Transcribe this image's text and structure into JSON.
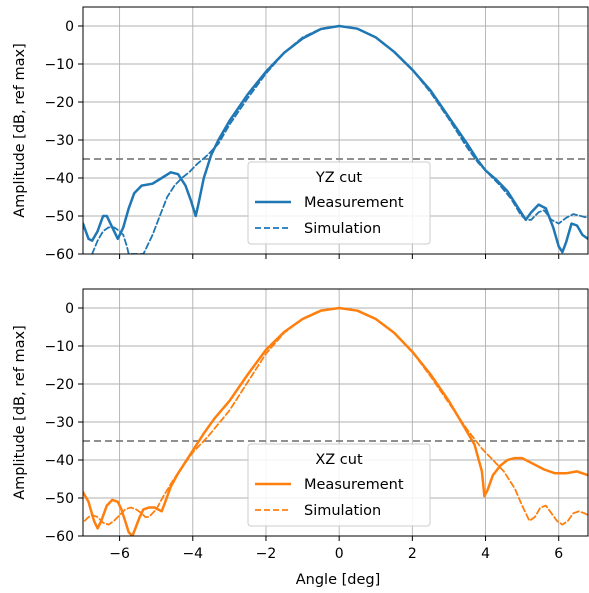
{
  "chart_data": [
    {
      "type": "line",
      "xlabel": "",
      "ylabel": "Amplitude [dB, ref max]",
      "xlim": [
        -7,
        6.8
      ],
      "ylim": [
        -60,
        5
      ],
      "xticks": [
        -6,
        -4,
        -2,
        0,
        2,
        4,
        6
      ],
      "yticks": [
        0,
        -10,
        -20,
        -30,
        -40,
        -50,
        -60
      ],
      "grid": true,
      "legend_title": "YZ cut",
      "legend_position": "lower-center",
      "threshold": -35,
      "color": "#1f77b4",
      "series": [
        {
          "name": "Measurement",
          "style": "solid",
          "points": [
            [
              -7.0,
              -52
            ],
            [
              -6.85,
              -56
            ],
            [
              -6.75,
              -56.5
            ],
            [
              -6.6,
              -54
            ],
            [
              -6.45,
              -50
            ],
            [
              -6.35,
              -50
            ],
            [
              -6.2,
              -53
            ],
            [
              -6.05,
              -56
            ],
            [
              -5.9,
              -53
            ],
            [
              -5.75,
              -48
            ],
            [
              -5.6,
              -44
            ],
            [
              -5.4,
              -42
            ],
            [
              -5.1,
              -41.5
            ],
            [
              -4.85,
              -40
            ],
            [
              -4.6,
              -38.5
            ],
            [
              -4.4,
              -39
            ],
            [
              -4.2,
              -42
            ],
            [
              -4.05,
              -46
            ],
            [
              -3.92,
              -50
            ],
            [
              -3.85,
              -47
            ],
            [
              -3.7,
              -40
            ],
            [
              -3.5,
              -34
            ],
            [
              -3.3,
              -30
            ],
            [
              -3.0,
              -25
            ],
            [
              -2.5,
              -18
            ],
            [
              -2.0,
              -12
            ],
            [
              -1.5,
              -7
            ],
            [
              -1.0,
              -3.3
            ],
            [
              -0.5,
              -0.8
            ],
            [
              0.0,
              0
            ],
            [
              0.5,
              -0.7
            ],
            [
              1.0,
              -3.0
            ],
            [
              1.5,
              -6.8
            ],
            [
              2.0,
              -11.5
            ],
            [
              2.5,
              -17
            ],
            [
              3.0,
              -24
            ],
            [
              3.5,
              -31
            ],
            [
              3.8,
              -35.5
            ],
            [
              4.0,
              -38
            ],
            [
              4.3,
              -40.5
            ],
            [
              4.6,
              -43.5
            ],
            [
              4.9,
              -48
            ],
            [
              5.1,
              -51
            ],
            [
              5.25,
              -49
            ],
            [
              5.45,
              -47
            ],
            [
              5.65,
              -48
            ],
            [
              5.85,
              -53
            ],
            [
              6.0,
              -58
            ],
            [
              6.1,
              -59.5
            ],
            [
              6.2,
              -57
            ],
            [
              6.35,
              -52
            ],
            [
              6.5,
              -52.5
            ],
            [
              6.65,
              -55
            ],
            [
              6.8,
              -56
            ]
          ]
        },
        {
          "name": "Simulation",
          "style": "dashed",
          "points": [
            [
              -6.75,
              -60
            ],
            [
              -6.6,
              -56.5
            ],
            [
              -6.45,
              -54
            ],
            [
              -6.3,
              -53
            ],
            [
              -6.15,
              -53
            ],
            [
              -6.0,
              -54
            ],
            [
              -5.9,
              -55
            ],
            [
              -5.8,
              -58
            ],
            [
              -5.75,
              -60
            ],
            [
              -5.35,
              -60
            ],
            [
              -5.2,
              -57
            ],
            [
              -5.1,
              -55
            ],
            [
              -4.9,
              -50
            ],
            [
              -4.7,
              -45
            ],
            [
              -4.5,
              -42
            ],
            [
              -4.3,
              -40
            ],
            [
              -4.1,
              -38.5
            ],
            [
              -3.9,
              -36.5
            ],
            [
              -3.6,
              -34
            ],
            [
              -3.3,
              -31
            ],
            [
              -3.0,
              -26
            ],
            [
              -2.5,
              -19
            ],
            [
              -2.0,
              -12.5
            ],
            [
              -1.5,
              -7
            ],
            [
              -1.0,
              -3
            ],
            [
              -0.5,
              -0.7
            ],
            [
              0.0,
              0
            ],
            [
              0.5,
              -0.7
            ],
            [
              1.0,
              -3.0
            ],
            [
              1.5,
              -6.8
            ],
            [
              2.0,
              -11.5
            ],
            [
              2.5,
              -17.5
            ],
            [
              3.0,
              -24.5
            ],
            [
              3.5,
              -32
            ],
            [
              3.8,
              -36
            ],
            [
              4.1,
              -39
            ],
            [
              4.4,
              -42
            ],
            [
              4.7,
              -45.5
            ],
            [
              4.95,
              -49.5
            ],
            [
              5.1,
              -51
            ],
            [
              5.25,
              -51
            ],
            [
              5.45,
              -49
            ],
            [
              5.6,
              -48.5
            ],
            [
              5.8,
              -51
            ],
            [
              6.0,
              -52
            ],
            [
              6.2,
              -50.5
            ],
            [
              6.4,
              -49.5
            ],
            [
              6.6,
              -50
            ],
            [
              6.8,
              -50.5
            ]
          ]
        }
      ]
    },
    {
      "type": "line",
      "xlabel": "Angle [deg]",
      "ylabel": "Amplitude [dB, ref max]",
      "xlim": [
        -7,
        6.8
      ],
      "ylim": [
        -60,
        5
      ],
      "xticks": [
        -6,
        -4,
        -2,
        0,
        2,
        4,
        6
      ],
      "yticks": [
        0,
        -10,
        -20,
        -30,
        -40,
        -50,
        -60
      ],
      "grid": true,
      "legend_title": "XZ cut",
      "legend_position": "lower-center",
      "threshold": -35,
      "color": "#ff7f0e",
      "series": [
        {
          "name": "Measurement",
          "style": "solid",
          "points": [
            [
              -7.0,
              -48.5
            ],
            [
              -6.85,
              -51
            ],
            [
              -6.7,
              -56
            ],
            [
              -6.6,
              -58
            ],
            [
              -6.5,
              -56
            ],
            [
              -6.35,
              -52
            ],
            [
              -6.2,
              -50.5
            ],
            [
              -6.05,
              -51
            ],
            [
              -5.95,
              -53
            ],
            [
              -5.85,
              -56
            ],
            [
              -5.75,
              -59
            ],
            [
              -5.65,
              -60
            ],
            [
              -5.55,
              -57.5
            ],
            [
              -5.45,
              -55
            ],
            [
              -5.35,
              -53
            ],
            [
              -5.2,
              -52.5
            ],
            [
              -5.05,
              -52.5
            ],
            [
              -4.95,
              -53
            ],
            [
              -4.85,
              -53.5
            ],
            [
              -4.75,
              -51
            ],
            [
              -4.6,
              -47
            ],
            [
              -4.4,
              -43.5
            ],
            [
              -4.2,
              -40.5
            ],
            [
              -4.0,
              -37.5
            ],
            [
              -3.7,
              -33
            ],
            [
              -3.4,
              -29
            ],
            [
              -3.0,
              -24.5
            ],
            [
              -2.5,
              -17.5
            ],
            [
              -2.0,
              -11
            ],
            [
              -1.5,
              -6.3
            ],
            [
              -1.0,
              -2.9
            ],
            [
              -0.5,
              -0.7
            ],
            [
              0.0,
              0
            ],
            [
              0.5,
              -0.7
            ],
            [
              1.0,
              -2.9
            ],
            [
              1.5,
              -6.5
            ],
            [
              2.0,
              -11.5
            ],
            [
              2.5,
              -17.5
            ],
            [
              3.0,
              -24.5
            ],
            [
              3.4,
              -31
            ],
            [
              3.7,
              -36
            ],
            [
              3.9,
              -43
            ],
            [
              3.97,
              -49.5
            ],
            [
              4.05,
              -48
            ],
            [
              4.2,
              -44
            ],
            [
              4.4,
              -41.5
            ],
            [
              4.6,
              -40
            ],
            [
              4.8,
              -39.5
            ],
            [
              5.0,
              -39.5
            ],
            [
              5.3,
              -41
            ],
            [
              5.6,
              -42.5
            ],
            [
              5.9,
              -43.5
            ],
            [
              6.2,
              -43.5
            ],
            [
              6.5,
              -43
            ],
            [
              6.8,
              -44
            ]
          ]
        },
        {
          "name": "Simulation",
          "style": "dashed",
          "points": [
            [
              -6.95,
              -56
            ],
            [
              -6.85,
              -55
            ],
            [
              -6.75,
              -54.5
            ],
            [
              -6.6,
              -55
            ],
            [
              -6.45,
              -56.5
            ],
            [
              -6.3,
              -57
            ],
            [
              -6.15,
              -56
            ],
            [
              -6.0,
              -54.5
            ],
            [
              -5.85,
              -53
            ],
            [
              -5.7,
              -52.5
            ],
            [
              -5.55,
              -53
            ],
            [
              -5.4,
              -54
            ],
            [
              -5.3,
              -55
            ],
            [
              -5.2,
              -55
            ],
            [
              -5.0,
              -53
            ],
            [
              -4.8,
              -49.5
            ],
            [
              -4.55,
              -45.5
            ],
            [
              -4.3,
              -42
            ],
            [
              -4.0,
              -38
            ],
            [
              -3.6,
              -34
            ],
            [
              -3.0,
              -27
            ],
            [
              -2.5,
              -19.5
            ],
            [
              -2.0,
              -12
            ],
            [
              -1.5,
              -6.5
            ],
            [
              -1.0,
              -2.8
            ],
            [
              -0.5,
              -0.6
            ],
            [
              0.0,
              0
            ],
            [
              0.5,
              -0.7
            ],
            [
              1.0,
              -2.9
            ],
            [
              1.5,
              -6.5
            ],
            [
              2.0,
              -11.5
            ],
            [
              2.5,
              -18
            ],
            [
              3.0,
              -25
            ],
            [
              3.5,
              -32
            ],
            [
              3.9,
              -37
            ],
            [
              4.2,
              -40
            ],
            [
              4.5,
              -43
            ],
            [
              4.8,
              -47.5
            ],
            [
              5.0,
              -52
            ],
            [
              5.1,
              -54
            ],
            [
              5.2,
              -56
            ],
            [
              5.35,
              -55
            ],
            [
              5.5,
              -52.5
            ],
            [
              5.65,
              -52
            ],
            [
              5.8,
              -54
            ],
            [
              5.95,
              -56
            ],
            [
              6.1,
              -57
            ],
            [
              6.25,
              -56
            ],
            [
              6.4,
              -54
            ],
            [
              6.55,
              -53.5
            ],
            [
              6.7,
              -54
            ],
            [
              6.8,
              -54.5
            ]
          ]
        }
      ]
    }
  ]
}
